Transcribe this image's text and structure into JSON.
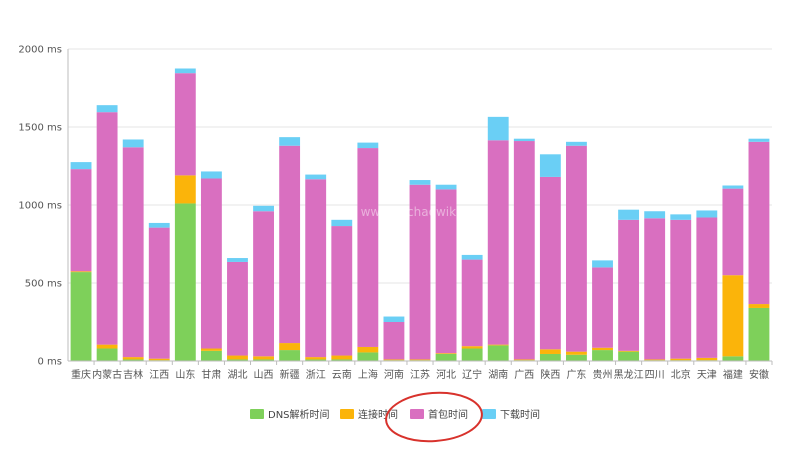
{
  "chart_data": {
    "type": "bar",
    "stacked": true,
    "categories": [
      "重庆",
      "内蒙古",
      "吉林",
      "江西",
      "山东",
      "甘肃",
      "湖北",
      "山西",
      "新疆",
      "浙江",
      "云南",
      "上海",
      "河南",
      "江苏",
      "河北",
      "辽宁",
      "湖南",
      "广西",
      "陕西",
      "广东",
      "贵州",
      "黑龙江",
      "四川",
      "北京",
      "天津",
      "福建",
      "安徽"
    ],
    "series": [
      {
        "name": "DNS解析时间",
        "color": "#7ed05a",
        "values": [
          570,
          80,
          10,
          5,
          1010,
          65,
          10,
          10,
          70,
          10,
          10,
          55,
          5,
          5,
          45,
          80,
          100,
          5,
          45,
          40,
          70,
          60,
          5,
          5,
          5,
          30,
          340
        ]
      },
      {
        "name": "连接时间",
        "color": "#fbb40a",
        "values": [
          5,
          25,
          15,
          10,
          180,
          15,
          25,
          20,
          45,
          15,
          25,
          35,
          5,
          5,
          5,
          15,
          5,
          5,
          30,
          20,
          15,
          5,
          5,
          10,
          15,
          520,
          25
        ]
      },
      {
        "name": "首包时间",
        "color": "#d96fc0",
        "values": [
          655,
          1490,
          1345,
          840,
          655,
          1090,
          600,
          930,
          1265,
          1140,
          830,
          1275,
          240,
          1120,
          1050,
          555,
          1310,
          1400,
          1105,
          1320,
          515,
          840,
          905,
          890,
          900,
          555,
          1040
        ]
      },
      {
        "name": "下载时间",
        "color": "#6acff5",
        "values": [
          45,
          45,
          50,
          30,
          30,
          45,
          25,
          35,
          55,
          30,
          40,
          35,
          35,
          30,
          30,
          30,
          150,
          15,
          145,
          25,
          45,
          65,
          45,
          35,
          45,
          20,
          20
        ]
      }
    ],
    "yticks": [
      "0 ms",
      "500 ms",
      "1000 ms",
      "1500 ms",
      "2000 ms"
    ],
    "ylim": [
      0,
      2000
    ],
    "grid": true,
    "legend_position": "bottom-center",
    "watermark": "www.liuchaowiki"
  }
}
